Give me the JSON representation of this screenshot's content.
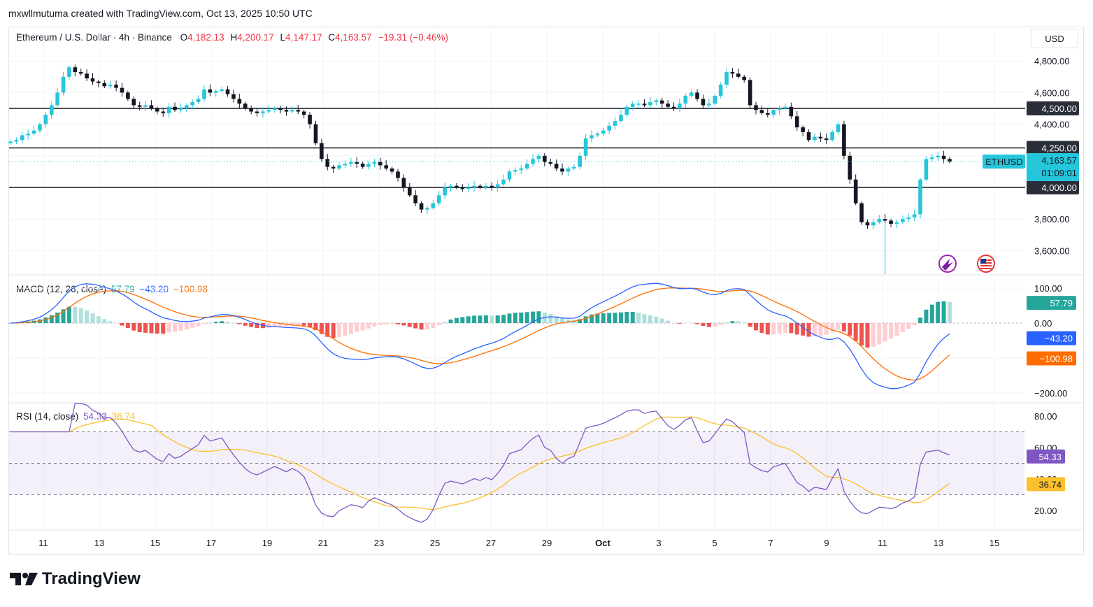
{
  "author_line": "mxwllmutuma created with TradingView.com, Oct 13, 2025 10:50 UTC",
  "symbol_title": "Ethereum / U.S. Dollar · 4h · Binance",
  "ohlc": {
    "o_label": "O",
    "o": "4,182.13",
    "h_label": "H",
    "h": "4,200.17",
    "l_label": "L",
    "l": "4,147.17",
    "c_label": "C",
    "c": "4,163.57",
    "change": "−19.31 (−0.46%)"
  },
  "currency_button": "USD",
  "price_axis": [
    "4,800.00",
    "4,600.00",
    "4,400.00",
    "3,800.00",
    "3,600.00"
  ],
  "level_labels": [
    "4,500.00",
    "4,250.00",
    "4,000.00"
  ],
  "last_price": {
    "symbol": "ETHUSD",
    "value": "4,163.57",
    "countdown": "01:09:01"
  },
  "macd": {
    "title": "MACD (12, 26, close)",
    "hist": "57.79",
    "macd": "−43.20",
    "signal": "−100.98",
    "axis": [
      "100.00",
      "0.00",
      "−200.00"
    ],
    "tags": {
      "hist": "57.79",
      "macd": "−43.20",
      "signal": "−100.98"
    }
  },
  "rsi": {
    "title": "RSI (14, close)",
    "value": "54.33",
    "ma": "36.74",
    "axis": [
      "80.00",
      "60.00",
      "40.00",
      "20.00"
    ],
    "tags": {
      "value": "54.33",
      "ma": "36.74"
    }
  },
  "time_axis": [
    "11",
    "13",
    "15",
    "17",
    "19",
    "21",
    "23",
    "25",
    "27",
    "29",
    "Oct",
    "3",
    "5",
    "7",
    "9",
    "11",
    "13",
    "15"
  ],
  "brand": "TradingView",
  "colors": {
    "up": "#26c6da",
    "down": "#131722",
    "histUp": "#26a69a",
    "histDown": "#ef5350",
    "macdLine": "#2962ff",
    "signalLine": "#ff6d00",
    "rsiLine": "#7e57c2",
    "rsiMa": "#fbc02d"
  },
  "chart_data": [
    {
      "type": "candlestick",
      "title": "Ethereum / U.S. Dollar · 4h · Binance",
      "ylim": [
        3450,
        4900
      ],
      "horizontal_levels": [
        4500,
        4250,
        4000
      ],
      "close_series": [
        4290,
        4300,
        4330,
        4340,
        4360,
        4400,
        4460,
        4520,
        4600,
        4700,
        4760,
        4730,
        4720,
        4690,
        4670,
        4660,
        4640,
        4650,
        4630,
        4600,
        4560,
        4520,
        4510,
        4520,
        4500,
        4480,
        4470,
        4510,
        4490,
        4500,
        4520,
        4540,
        4560,
        4620,
        4600,
        4610,
        4620,
        4590,
        4560,
        4530,
        4500,
        4480,
        4470,
        4480,
        4490,
        4500,
        4490,
        4480,
        4490,
        4480,
        4460,
        4400,
        4280,
        4180,
        4130,
        4120,
        4140,
        4150,
        4160,
        4150,
        4130,
        4150,
        4160,
        4140,
        4120,
        4100,
        4060,
        4000,
        3950,
        3900,
        3860,
        3870,
        3900,
        3950,
        4000,
        4010,
        4000,
        3990,
        4000,
        4010,
        4000,
        4010,
        4000,
        4020,
        4050,
        4100,
        4110,
        4120,
        4150,
        4180,
        4200,
        4160,
        4150,
        4120,
        4100,
        4120,
        4130,
        4200,
        4310,
        4330,
        4340,
        4360,
        4390,
        4420,
        4460,
        4510,
        4530,
        4530,
        4520,
        4540,
        4550,
        4530,
        4510,
        4500,
        4530,
        4580,
        4600,
        4560,
        4520,
        4530,
        4580,
        4650,
        4730,
        4720,
        4700,
        4680,
        4520,
        4490,
        4470,
        4460,
        4490,
        4500,
        4510,
        4450,
        4380,
        4350,
        4300,
        4320,
        4310,
        4300,
        4350,
        4400,
        4200,
        4050,
        3900,
        3780,
        3760,
        3780,
        3800,
        3790,
        3770,
        3780,
        3800,
        3810,
        3830,
        4050,
        4180,
        4190,
        4200,
        4180,
        4163.57
      ]
    },
    {
      "type": "bar+line",
      "title": "MACD (12, 26, close)",
      "ylim": [
        -230,
        120
      ],
      "series": [
        {
          "name": "MACD",
          "last": -43.2
        },
        {
          "name": "Signal",
          "last": -100.98
        },
        {
          "name": "Histogram",
          "last": 57.79
        }
      ]
    },
    {
      "type": "line",
      "title": "RSI (14, close)",
      "ylim": [
        10,
        90
      ],
      "bands": [
        30,
        50,
        70
      ],
      "series": [
        {
          "name": "RSI",
          "last": 54.33
        },
        {
          "name": "RSI-based MA",
          "last": 36.74
        }
      ]
    }
  ]
}
